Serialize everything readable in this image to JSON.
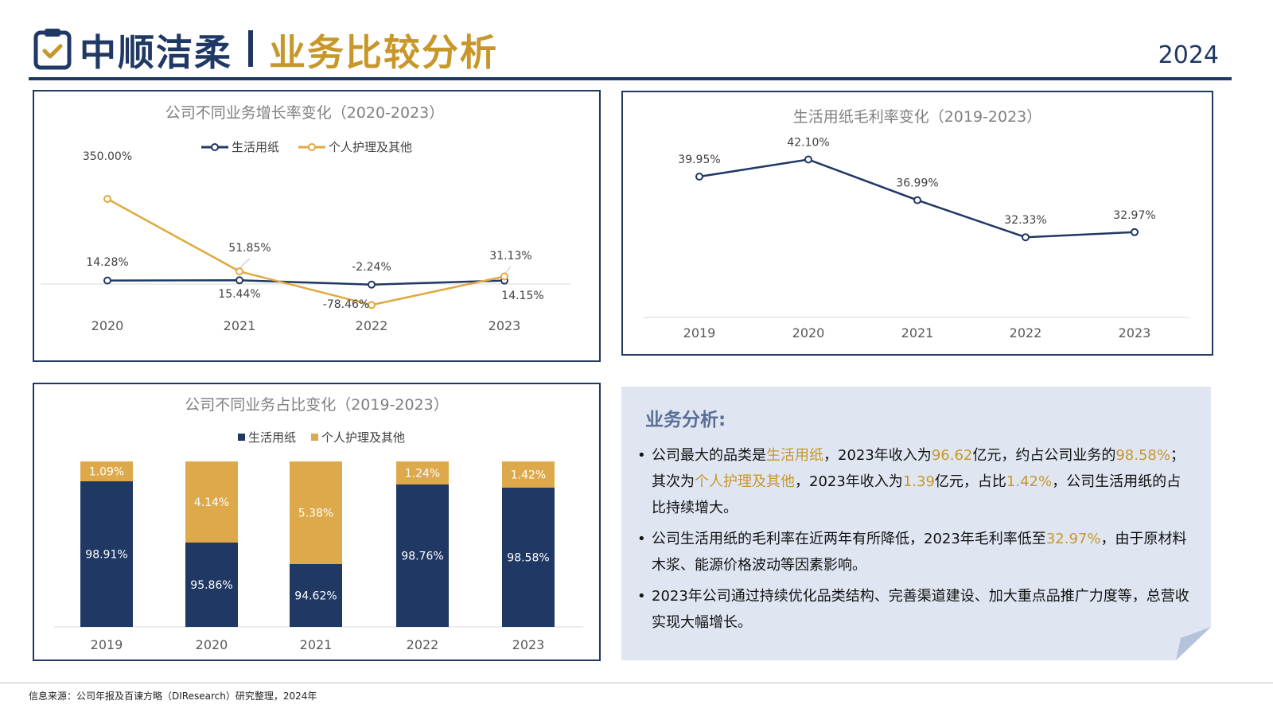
{
  "header": {
    "brand": "中顺洁柔",
    "subtitle": "业务比较分析",
    "year": "2024"
  },
  "colors": {
    "navy": "#1f3864",
    "gold": "#c8972a",
    "gold_bar": "#dea94a",
    "panel_bg": "#dfe6f2"
  },
  "chart_data": [
    {
      "type": "line",
      "title": "公司不同业务增长率变化（2020-2023）",
      "categories": [
        "2020",
        "2021",
        "2022",
        "2023"
      ],
      "series": [
        {
          "name": "生活用纸",
          "values": [
            14.28,
            15.44,
            -2.24,
            14.15
          ],
          "labels": [
            "14.28%",
            "15.44%",
            "-2.24%",
            "14.15%"
          ],
          "color": "#1f3864"
        },
        {
          "name": "个人护理及其他",
          "values": [
            350.0,
            51.85,
            -78.46,
            31.13
          ],
          "labels": [
            "350.00%",
            "51.85%",
            "-78.46%",
            "31.13%"
          ],
          "color": "#e0a93f"
        }
      ],
      "legend": "top-center",
      "grid": false
    },
    {
      "type": "line",
      "title": "生活用纸毛利率变化（2019-2023）",
      "categories": [
        "2019",
        "2020",
        "2021",
        "2022",
        "2023"
      ],
      "series": [
        {
          "name": "生活用纸",
          "values": [
            39.95,
            42.1,
            36.99,
            32.33,
            32.97
          ],
          "labels": [
            "39.95%",
            "42.10%",
            "36.99%",
            "32.33%",
            "32.97%"
          ],
          "color": "#1f3864"
        }
      ],
      "grid": false
    },
    {
      "type": "bar",
      "stacked": true,
      "title": "公司不同业务占比变化（2019-2023）",
      "categories": [
        "2019",
        "2020",
        "2021",
        "2022",
        "2023"
      ],
      "series": [
        {
          "name": "生活用纸",
          "values": [
            98.91,
            95.86,
            94.62,
            98.76,
            98.58
          ],
          "labels": [
            "98.91%",
            "95.86%",
            "94.62%",
            "98.76%",
            "98.58%"
          ],
          "color": "#1f3864"
        },
        {
          "name": "个人护理及其他",
          "values": [
            1.09,
            4.14,
            5.38,
            1.24,
            1.42
          ],
          "labels": [
            "1.09%",
            "4.14%",
            "5.38%",
            "1.24%",
            "1.42%"
          ],
          "color": "#dea94a"
        }
      ],
      "legend": "top-center",
      "grid": false
    }
  ],
  "analysis": {
    "title": "业务分析:",
    "b1": [
      "公司最大的品类是",
      "生活用纸",
      "，2023年收入为",
      "96.62",
      "亿元，约占公司业务的",
      "98.58%",
      "；其次为",
      "个人护理及其他",
      "，2023年收入为",
      "1.39",
      "亿元，占比",
      "1.42%",
      "，公司生活用纸的占比持续增大。"
    ],
    "b2": [
      "公司生活用纸的毛利率在近两年有所降低，2023年毛利率低至",
      "32.97%",
      "，由于原材料木浆、能源价格波动等因素影响。"
    ],
    "b3": "2023年公司通过持续优化品类结构、完善渠道建设、加大重点品推广力度等，总营收实现大幅增长。"
  },
  "footer": "信息来源：公司年报及百谏方略（DIResearch）研究整理，2024年"
}
